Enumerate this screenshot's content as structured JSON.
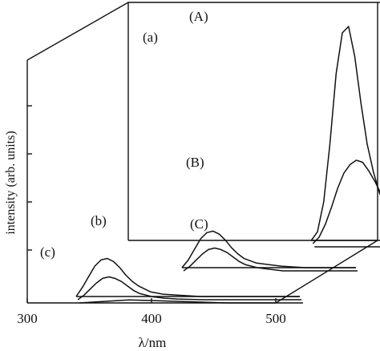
{
  "chart_data": {
    "type": "line",
    "projection": "3d-waterfall",
    "xlabel": "λ/nm",
    "ylabel": "intensity (arb. units)",
    "x_ticks": [
      "300",
      "400",
      "500"
    ],
    "xlim": [
      300,
      500
    ],
    "grid": false,
    "panels": [
      {
        "label": "(a)",
        "series": [
          {
            "name": "(A)",
            "x": [
              395,
              400,
              405,
              410,
              415,
              420,
              425,
              430,
              435,
              440,
              445,
              450,
              460,
              470,
              480,
              490,
              500
            ],
            "y": [
              0.0,
              0.04,
              0.18,
              0.45,
              0.78,
              0.97,
              1.0,
              0.86,
              0.64,
              0.45,
              0.32,
              0.22,
              0.11,
              0.06,
              0.03,
              0.02,
              0.01
            ]
          },
          {
            "name": "(B)",
            "x": [
              395,
              400,
              405,
              410,
              415,
              420,
              425,
              430,
              435,
              440,
              445,
              450,
              460,
              470,
              480,
              490,
              500
            ],
            "y": [
              0.0,
              0.03,
              0.09,
              0.17,
              0.26,
              0.33,
              0.37,
              0.39,
              0.38,
              0.34,
              0.29,
              0.23,
              0.14,
              0.08,
              0.04,
              0.02,
              0.01
            ]
          },
          {
            "name": "(C)",
            "x": [
              395,
              420,
              440,
              460,
              480,
              500
            ],
            "y": [
              0.0,
              0.0,
              0.0,
              0.0,
              0.0,
              0.0
            ]
          }
        ]
      },
      {
        "label": "(b)",
        "series": [
          {
            "name": "",
            "x": [
              360,
              365,
              370,
              375,
              380,
              385,
              390,
              395,
              400,
              405,
              410,
              420,
              430,
              440,
              450,
              460,
              470,
              480,
              490,
              500
            ],
            "y": [
              0.0,
              0.05,
              0.12,
              0.19,
              0.23,
              0.24,
              0.22,
              0.18,
              0.13,
              0.09,
              0.06,
              0.03,
              0.02,
              0.01,
              0.005,
              0,
              0,
              0,
              0,
              0
            ]
          },
          {
            "name": "",
            "x": [
              360,
              365,
              370,
              375,
              380,
              385,
              390,
              395,
              400,
              405,
              410,
              420,
              430,
              440,
              450,
              460,
              470,
              480,
              490,
              500
            ],
            "y": [
              0.0,
              0.03,
              0.07,
              0.11,
              0.14,
              0.15,
              0.14,
              0.12,
              0.09,
              0.06,
              0.04,
              0.02,
              0.01,
              0,
              0,
              0,
              0,
              0,
              0,
              0
            ]
          }
        ]
      },
      {
        "label": "(c)",
        "series": [
          {
            "name": "",
            "x": [
              320,
              325,
              330,
              335,
              340,
              345,
              350,
              355,
              360,
              365,
              370,
              380,
              390,
              400,
              420,
              440,
              460,
              480,
              500
            ],
            "y": [
              0.0,
              0.06,
              0.13,
              0.2,
              0.24,
              0.25,
              0.23,
              0.19,
              0.14,
              0.1,
              0.07,
              0.03,
              0.015,
              0.01,
              0,
              0,
              0,
              0,
              0
            ]
          },
          {
            "name": "",
            "x": [
              320,
              325,
              330,
              335,
              340,
              345,
              350,
              355,
              360,
              365,
              370,
              380,
              390,
              400,
              420,
              440,
              460,
              480,
              500
            ],
            "y": [
              0.0,
              0.03,
              0.07,
              0.11,
              0.14,
              0.15,
              0.14,
              0.12,
              0.09,
              0.06,
              0.04,
              0.02,
              0.01,
              0.005,
              0,
              0,
              0,
              0,
              0
            ]
          },
          {
            "name": "",
            "x": [
              320,
              340,
              360,
              380,
              400,
              420,
              440,
              460,
              480,
              500
            ],
            "y": [
              0.0,
              0.01,
              0.02,
              0.015,
              0.01,
              0.005,
              0,
              0,
              0,
              0
            ]
          }
        ]
      }
    ]
  }
}
